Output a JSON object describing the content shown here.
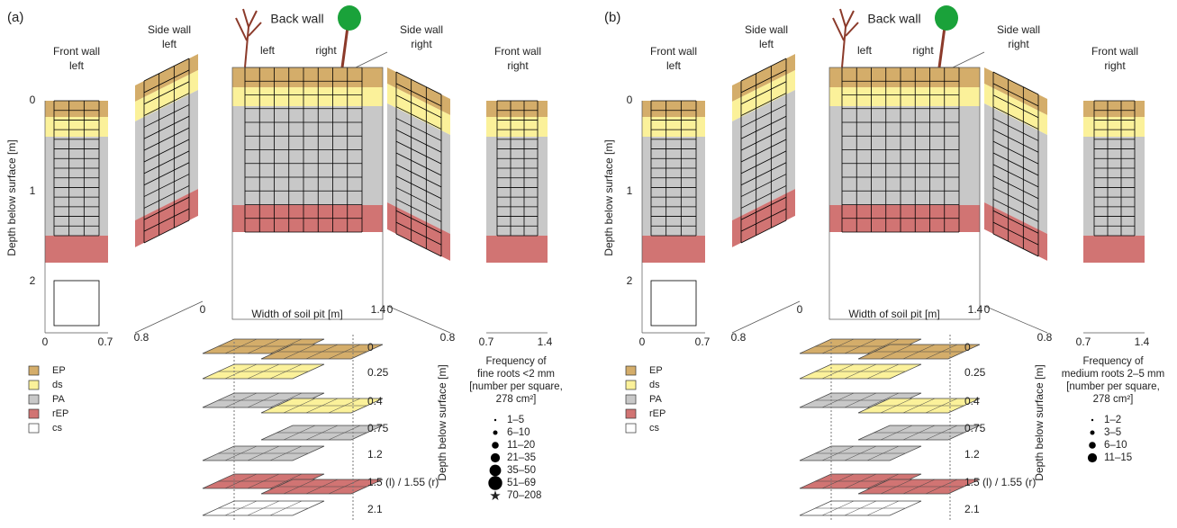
{
  "panels": [
    {
      "label": "(a)",
      "front_wall_left": [
        "Front wall",
        "left"
      ],
      "side_wall_left": [
        "Side wall",
        "left"
      ],
      "back_wall": "Back wall",
      "back_left": "left",
      "back_right": "right",
      "side_wall_right": [
        "Side wall",
        "right"
      ],
      "front_wall_right": [
        "Front wall",
        "right"
      ],
      "depth_axis_label": "Depth below surface [m]",
      "depth_ticks": [
        "0",
        "1",
        "2"
      ],
      "front_left_ticks": [
        "0",
        "0.7"
      ],
      "side_left_ticks": [
        "0.8",
        "0"
      ],
      "back_axis_label": "Width of soil pit [m]",
      "back_ticks": [
        "1.4"
      ],
      "side_right_ticks": [
        "0",
        "0.8"
      ],
      "front_right_ticks": [
        "0.7",
        "1.4"
      ],
      "legend": [
        "EP",
        "ds",
        "PA",
        "rEP",
        "cs"
      ],
      "layer_depths": [
        "0",
        "0.25",
        "0.4",
        "0.75",
        "1.2",
        "1.5 (l) / 1.55 (r)",
        "2.1"
      ],
      "layer_axis_label": "Depth below surface [m]",
      "frequency_title": [
        "Frequency of",
        "fine roots <2 mm",
        "[number per square,",
        "278 cm²]"
      ],
      "frequency_classes": [
        "1–5",
        "6–10",
        "11–20",
        "21–35",
        "35–50",
        "51–69",
        "70–208"
      ]
    },
    {
      "label": "(b)",
      "front_wall_left": [
        "Front wall",
        "left"
      ],
      "side_wall_left": [
        "Side wall",
        "left"
      ],
      "back_wall": "Back wall",
      "back_left": "left",
      "back_right": "right",
      "side_wall_right": [
        "Side wall",
        "right"
      ],
      "front_wall_right": [
        "Front wall",
        "right"
      ],
      "depth_axis_label": "Depth below surface [m]",
      "depth_ticks": [
        "0",
        "1",
        "2"
      ],
      "front_left_ticks": [
        "0",
        "0.7"
      ],
      "side_left_ticks": [
        "0.8",
        "0"
      ],
      "back_axis_label": "Width of soil pit [m]",
      "back_ticks": [
        "1.4"
      ],
      "side_right_ticks": [
        "0",
        "0.8"
      ],
      "front_right_ticks": [
        "0.7",
        "1.4"
      ],
      "legend": [
        "EP",
        "ds",
        "PA",
        "rEP",
        "cs"
      ],
      "layer_depths": [
        "0",
        "0.25",
        "0.4",
        "0.75",
        "1.2",
        "1.5 (l) / 1.55 (r)",
        "2.1"
      ],
      "layer_axis_label": "Depth below surface [m]",
      "frequency_title": [
        "Frequency of",
        "medium roots 2–5 mm",
        "[number per square,",
        "278 cm²]"
      ],
      "frequency_classes": [
        "1–2",
        "3–5",
        "6–10",
        "11–15"
      ]
    }
  ]
}
